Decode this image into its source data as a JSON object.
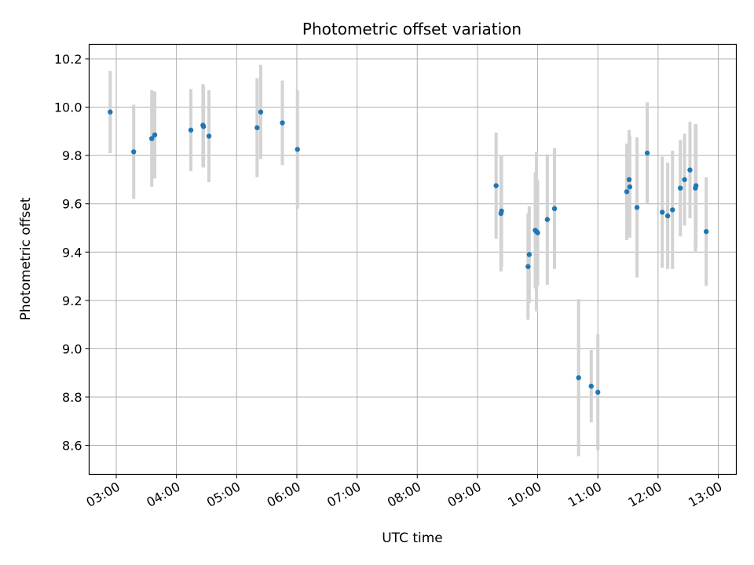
{
  "chart_data": {
    "type": "scatter",
    "title": "Photometric offset variation",
    "xlabel": "UTC time",
    "ylabel": "Photometric offset",
    "x_unit": "UTC hours",
    "xlim": [
      2.55,
      13.3
    ],
    "ylim": [
      8.48,
      10.26
    ],
    "grid": true,
    "x_ticks": [
      {
        "value": 3,
        "label": "03:00"
      },
      {
        "value": 4,
        "label": "04:00"
      },
      {
        "value": 5,
        "label": "05:00"
      },
      {
        "value": 6,
        "label": "06:00"
      },
      {
        "value": 7,
        "label": "07:00"
      },
      {
        "value": 8,
        "label": "08:00"
      },
      {
        "value": 9,
        "label": "09:00"
      },
      {
        "value": 10,
        "label": "10:00"
      },
      {
        "value": 11,
        "label": "11:00"
      },
      {
        "value": 12,
        "label": "12:00"
      },
      {
        "value": 13,
        "label": "13:00"
      }
    ],
    "y_ticks": [
      {
        "value": 8.6,
        "label": "8.6"
      },
      {
        "value": 8.8,
        "label": "8.8"
      },
      {
        "value": 9.0,
        "label": "9.0"
      },
      {
        "value": 9.2,
        "label": "9.2"
      },
      {
        "value": 9.4,
        "label": "9.4"
      },
      {
        "value": 9.6,
        "label": "9.6"
      },
      {
        "value": 9.8,
        "label": "9.8"
      },
      {
        "value": 10.0,
        "label": "10.0"
      },
      {
        "value": 10.2,
        "label": "10.2"
      }
    ],
    "colors": {
      "marker": "#1f77b4",
      "errorbar": "#d3d3d3",
      "grid": "#b0b0b0"
    },
    "points": [
      {
        "t": "02:54",
        "x": 2.9,
        "y": 9.98,
        "err": 0.17
      },
      {
        "t": "03:17",
        "x": 3.29,
        "y": 9.815,
        "err": 0.195
      },
      {
        "t": "03:35",
        "x": 3.59,
        "y": 9.87,
        "err": 0.2
      },
      {
        "t": "03:38",
        "x": 3.64,
        "y": 9.885,
        "err": 0.18
      },
      {
        "t": "04:14",
        "x": 4.24,
        "y": 9.905,
        "err": 0.17
      },
      {
        "t": "04:26",
        "x": 4.44,
        "y": 9.925,
        "err": 0.17
      },
      {
        "t": "04:27",
        "x": 4.45,
        "y": 9.92,
        "err": 0.17
      },
      {
        "t": "04:32",
        "x": 4.54,
        "y": 9.88,
        "err": 0.19
      },
      {
        "t": "05:20",
        "x": 5.34,
        "y": 9.915,
        "err": 0.205
      },
      {
        "t": "05:24",
        "x": 5.4,
        "y": 9.98,
        "err": 0.195
      },
      {
        "t": "05:45",
        "x": 5.76,
        "y": 9.935,
        "err": 0.175
      },
      {
        "t": "06:01",
        "x": 6.01,
        "y": 9.825,
        "err": 0.245
      },
      {
        "t": "09:18",
        "x": 9.31,
        "y": 9.675,
        "err": 0.22
      },
      {
        "t": "09:23",
        "x": 9.39,
        "y": 9.56,
        "err": 0.24
      },
      {
        "t": "09:24",
        "x": 9.4,
        "y": 9.57,
        "err": 0.23
      },
      {
        "t": "09:50",
        "x": 9.84,
        "y": 9.34,
        "err": 0.22
      },
      {
        "t": "09:51",
        "x": 9.86,
        "y": 9.39,
        "err": 0.2
      },
      {
        "t": "09:57",
        "x": 9.96,
        "y": 9.49,
        "err": 0.24
      },
      {
        "t": "09:59",
        "x": 9.98,
        "y": 9.485,
        "err": 0.33
      },
      {
        "t": "10:00",
        "x": 10.0,
        "y": 9.48,
        "err": 0.22
      },
      {
        "t": "10:10",
        "x": 10.16,
        "y": 9.535,
        "err": 0.27
      },
      {
        "t": "10:17",
        "x": 10.28,
        "y": 9.58,
        "err": 0.25
      },
      {
        "t": "10:41",
        "x": 10.68,
        "y": 8.88,
        "err": 0.325
      },
      {
        "t": "10:53",
        "x": 10.89,
        "y": 8.845,
        "err": 0.15
      },
      {
        "t": "11:00",
        "x": 11.0,
        "y": 8.82,
        "err": 0.24
      },
      {
        "t": "11:29",
        "x": 11.48,
        "y": 9.65,
        "err": 0.2
      },
      {
        "t": "11:31",
        "x": 11.52,
        "y": 9.7,
        "err": 0.205
      },
      {
        "t": "11:32",
        "x": 11.53,
        "y": 9.67,
        "err": 0.21
      },
      {
        "t": "11:39",
        "x": 11.65,
        "y": 9.585,
        "err": 0.29
      },
      {
        "t": "11:49",
        "x": 11.82,
        "y": 9.81,
        "err": 0.21
      },
      {
        "t": "12:04",
        "x": 12.07,
        "y": 9.565,
        "err": 0.23
      },
      {
        "t": "12:09",
        "x": 12.16,
        "y": 9.55,
        "err": 0.22
      },
      {
        "t": "12:14",
        "x": 12.24,
        "y": 9.575,
        "err": 0.245
      },
      {
        "t": "12:22",
        "x": 12.37,
        "y": 9.665,
        "err": 0.2
      },
      {
        "t": "12:26",
        "x": 12.44,
        "y": 9.7,
        "err": 0.19
      },
      {
        "t": "12:32",
        "x": 12.53,
        "y": 9.74,
        "err": 0.2
      },
      {
        "t": "12:37",
        "x": 12.62,
        "y": 9.665,
        "err": 0.265
      },
      {
        "t": "12:38",
        "x": 12.63,
        "y": 9.675,
        "err": 0.255
      },
      {
        "t": "12:48",
        "x": 12.8,
        "y": 9.485,
        "err": 0.225
      }
    ]
  }
}
